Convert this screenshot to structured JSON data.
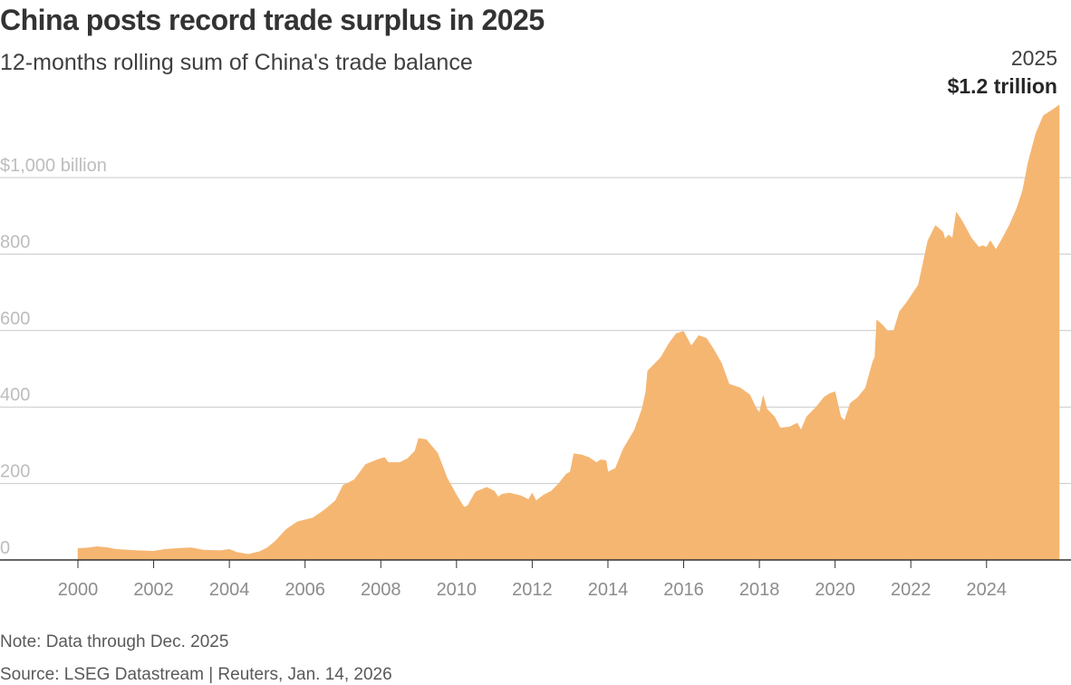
{
  "title": "China posts record trade surplus in 2025",
  "subtitle": "12-months rolling sum of China's trade balance",
  "note": "Note: Data through Dec. 2025",
  "source": "Source: LSEG Datastream | Reuters, Jan. 14, 2026",
  "annotation": {
    "year": "2025",
    "value": "$1.2 trillion"
  },
  "colors": {
    "area": "#f5b672",
    "grid": "#c8c8c8",
    "axis": "#333333"
  },
  "chart_data": {
    "type": "area",
    "title": "China posts record trade surplus in 2025",
    "subtitle": "12-months rolling sum of China's trade balance",
    "xlabel": "",
    "ylabel": "",
    "unit": "billion",
    "xlim": [
      1999.9,
      2026.0
    ],
    "ylim": [
      0,
      1200
    ],
    "grid": true,
    "y_ticks": [
      {
        "value": 0,
        "label": "0"
      },
      {
        "value": 200,
        "label": "200"
      },
      {
        "value": 400,
        "label": "400"
      },
      {
        "value": 600,
        "label": "600"
      },
      {
        "value": 800,
        "label": "800"
      },
      {
        "value": 1000,
        "label": "$1,000 billion"
      }
    ],
    "x_ticks": [
      {
        "value": 2000,
        "label": "2000"
      },
      {
        "value": 2002,
        "label": "2002"
      },
      {
        "value": 2004,
        "label": "2004"
      },
      {
        "value": 2006,
        "label": "2006"
      },
      {
        "value": 2008,
        "label": "2008"
      },
      {
        "value": 2010,
        "label": "2010"
      },
      {
        "value": 2012,
        "label": "2012"
      },
      {
        "value": 2014,
        "label": "2014"
      },
      {
        "value": 2016,
        "label": "2016"
      },
      {
        "value": 2018,
        "label": "2018"
      },
      {
        "value": 2020,
        "label": "2020"
      },
      {
        "value": 2022,
        "label": "2022"
      },
      {
        "value": 2024,
        "label": "2024"
      }
    ],
    "series": [
      {
        "points": [
          [
            2000.0,
            30
          ],
          [
            2000.3,
            32
          ],
          [
            2000.5,
            35
          ],
          [
            2000.8,
            32
          ],
          [
            2001.0,
            28
          ],
          [
            2001.5,
            25
          ],
          [
            2002.0,
            23
          ],
          [
            2002.3,
            28
          ],
          [
            2002.6,
            30
          ],
          [
            2003.0,
            32
          ],
          [
            2003.3,
            26
          ],
          [
            2003.6,
            25
          ],
          [
            2003.8,
            25
          ],
          [
            2004.0,
            28
          ],
          [
            2004.2,
            20
          ],
          [
            2004.5,
            15
          ],
          [
            2004.8,
            22
          ],
          [
            2005.0,
            32
          ],
          [
            2005.2,
            48
          ],
          [
            2005.5,
            80
          ],
          [
            2005.8,
            100
          ],
          [
            2006.0,
            105
          ],
          [
            2006.2,
            110
          ],
          [
            2006.5,
            130
          ],
          [
            2006.8,
            155
          ],
          [
            2007.0,
            195
          ],
          [
            2007.3,
            210
          ],
          [
            2007.6,
            250
          ],
          [
            2007.9,
            262
          ],
          [
            2008.1,
            268
          ],
          [
            2008.2,
            255
          ],
          [
            2008.5,
            255
          ],
          [
            2008.7,
            265
          ],
          [
            2008.9,
            285
          ],
          [
            2009.0,
            318
          ],
          [
            2009.2,
            315
          ],
          [
            2009.5,
            280
          ],
          [
            2009.75,
            215
          ],
          [
            2010.0,
            170
          ],
          [
            2010.2,
            138
          ],
          [
            2010.3,
            143
          ],
          [
            2010.5,
            178
          ],
          [
            2010.8,
            190
          ],
          [
            2011.0,
            180
          ],
          [
            2011.1,
            165
          ],
          [
            2011.2,
            172
          ],
          [
            2011.4,
            175
          ],
          [
            2011.7,
            168
          ],
          [
            2011.9,
            158
          ],
          [
            2012.0,
            175
          ],
          [
            2012.1,
            155
          ],
          [
            2012.3,
            170
          ],
          [
            2012.5,
            180
          ],
          [
            2012.7,
            200
          ],
          [
            2012.9,
            225
          ],
          [
            2013.0,
            230
          ],
          [
            2013.1,
            278
          ],
          [
            2013.3,
            275
          ],
          [
            2013.5,
            268
          ],
          [
            2013.7,
            255
          ],
          [
            2013.8,
            262
          ],
          [
            2013.95,
            260
          ],
          [
            2014.0,
            230
          ],
          [
            2014.2,
            240
          ],
          [
            2014.4,
            290
          ],
          [
            2014.7,
            340
          ],
          [
            2014.9,
            395
          ],
          [
            2015.0,
            440
          ],
          [
            2015.05,
            495
          ],
          [
            2015.2,
            510
          ],
          [
            2015.4,
            530
          ],
          [
            2015.6,
            565
          ],
          [
            2015.8,
            592
          ],
          [
            2016.0,
            598
          ],
          [
            2016.2,
            560
          ],
          [
            2016.4,
            587
          ],
          [
            2016.6,
            580
          ],
          [
            2016.8,
            550
          ],
          [
            2017.0,
            515
          ],
          [
            2017.2,
            460
          ],
          [
            2017.5,
            450
          ],
          [
            2017.75,
            432
          ],
          [
            2017.9,
            400
          ],
          [
            2018.0,
            385
          ],
          [
            2018.1,
            430
          ],
          [
            2018.2,
            395
          ],
          [
            2018.4,
            375
          ],
          [
            2018.55,
            345
          ],
          [
            2018.8,
            348
          ],
          [
            2019.0,
            358
          ],
          [
            2019.1,
            340
          ],
          [
            2019.25,
            375
          ],
          [
            2019.5,
            400
          ],
          [
            2019.7,
            425
          ],
          [
            2019.85,
            435
          ],
          [
            2020.0,
            440
          ],
          [
            2020.15,
            375
          ],
          [
            2020.25,
            365
          ],
          [
            2020.4,
            410
          ],
          [
            2020.6,
            425
          ],
          [
            2020.8,
            450
          ],
          [
            2021.0,
            520
          ],
          [
            2021.05,
            530
          ],
          [
            2021.1,
            628
          ],
          [
            2021.25,
            615
          ],
          [
            2021.4,
            598
          ],
          [
            2021.55,
            600
          ],
          [
            2021.7,
            650
          ],
          [
            2021.9,
            675
          ],
          [
            2022.0,
            690
          ],
          [
            2022.2,
            720
          ],
          [
            2022.45,
            835
          ],
          [
            2022.65,
            875
          ],
          [
            2022.85,
            858
          ],
          [
            2022.9,
            840
          ],
          [
            2023.0,
            850
          ],
          [
            2023.1,
            842
          ],
          [
            2023.2,
            910
          ],
          [
            2023.35,
            888
          ],
          [
            2023.6,
            842
          ],
          [
            2023.8,
            818
          ],
          [
            2023.9,
            822
          ],
          [
            2024.0,
            818
          ],
          [
            2024.1,
            835
          ],
          [
            2024.25,
            812
          ],
          [
            2024.4,
            838
          ],
          [
            2024.6,
            875
          ],
          [
            2024.8,
            920
          ],
          [
            2024.95,
            965
          ],
          [
            2025.1,
            1040
          ],
          [
            2025.3,
            1115
          ],
          [
            2025.5,
            1162
          ],
          [
            2025.75,
            1178
          ],
          [
            2025.92,
            1190
          ]
        ]
      }
    ]
  }
}
